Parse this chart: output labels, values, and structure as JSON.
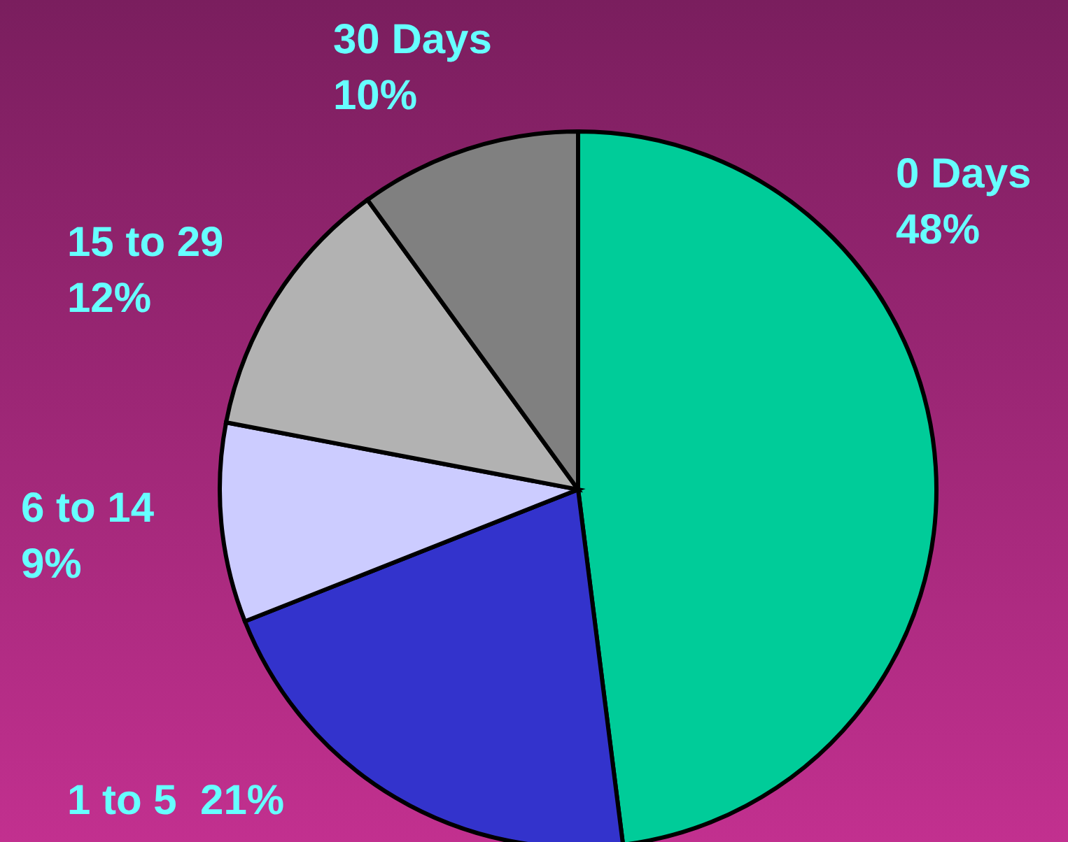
{
  "chart_data": {
    "type": "pie",
    "categories": [
      "0 Days",
      "1 to 5",
      "6 to 14",
      "15 to 29",
      "30 Days"
    ],
    "values": [
      48,
      21,
      9,
      12,
      10
    ],
    "colors": [
      "#00cc99",
      "#3333cc",
      "#ccccff",
      "#b2b2b2",
      "#808080"
    ],
    "value_labels": [
      "48%",
      "21%",
      "9%",
      "12%",
      "10%"
    ],
    "legend": false
  }
}
